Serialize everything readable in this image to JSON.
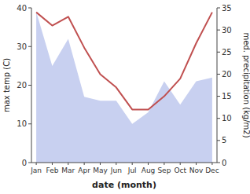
{
  "chart_data": {
    "type": "area",
    "xlabel": "date (month)",
    "ylabel": "max temp (C)",
    "y2label": "med. precipitation (kg/m2)",
    "categories": [
      "Jan",
      "Feb",
      "Mar",
      "Apr",
      "May",
      "Jun",
      "Jul",
      "Aug",
      "Sep",
      "Oct",
      "Nov",
      "Dec"
    ],
    "series": [
      {
        "type": "area",
        "color": "#c8d0f0",
        "values": [
          39,
          25,
          32,
          17,
          16,
          16,
          10,
          13,
          21,
          15,
          21,
          22
        ]
      },
      {
        "type": "line",
        "color": "#c05050",
        "axis": "y2",
        "values": [
          34,
          31,
          33,
          26,
          20,
          17,
          12,
          12,
          15,
          19,
          27,
          34
        ]
      }
    ],
    "ylim": [
      0,
      40
    ],
    "yticks": [
      0,
      10,
      20,
      30,
      40
    ],
    "y2lim": [
      0,
      35
    ],
    "y2ticks": [
      0,
      5,
      10,
      15,
      20,
      25,
      30,
      35
    ],
    "grid": false
  }
}
